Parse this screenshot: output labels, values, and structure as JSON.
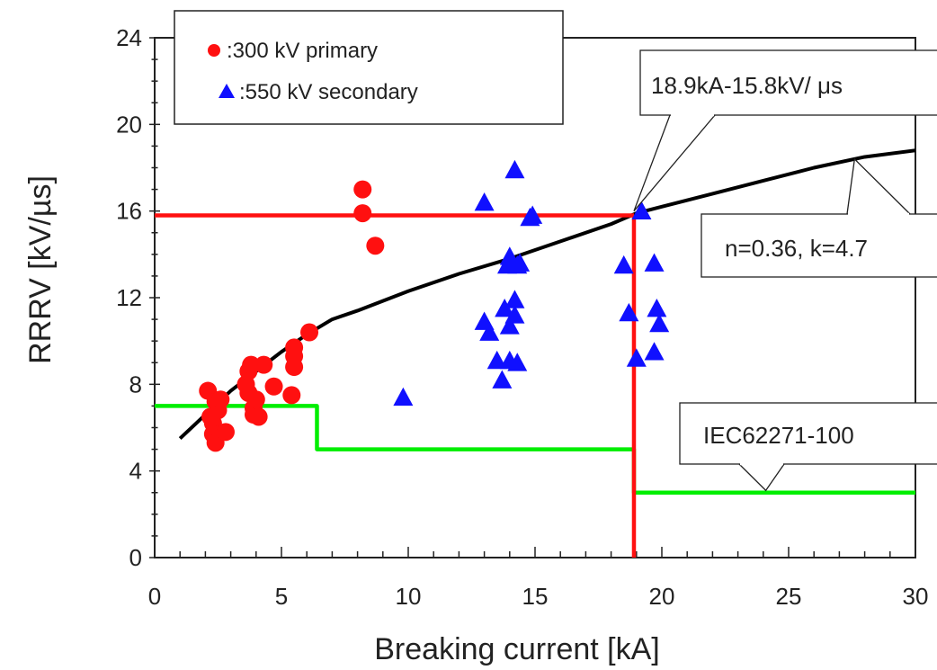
{
  "chart_data": {
    "type": "scatter",
    "title": "",
    "xlabel": "Breaking current [kA]",
    "ylabel": "RRRV [kV/µs]",
    "xlim": [
      0,
      30
    ],
    "ylim": [
      0,
      24
    ],
    "x_ticks": [
      0,
      5,
      10,
      15,
      20,
      25,
      30
    ],
    "y_ticks": [
      0,
      4,
      8,
      12,
      16,
      20,
      24
    ],
    "legend_position": "top-left",
    "series": [
      {
        "name": ":300 kV primary",
        "marker": "circle",
        "color": "#ff1010",
        "points": [
          [
            2.1,
            7.7
          ],
          [
            2.2,
            6.5
          ],
          [
            2.3,
            6.2
          ],
          [
            2.3,
            5.7
          ],
          [
            2.4,
            7.2
          ],
          [
            2.4,
            5.3
          ],
          [
            2.5,
            6.8
          ],
          [
            2.6,
            7.3
          ],
          [
            2.8,
            5.8
          ],
          [
            3.6,
            8.0
          ],
          [
            3.7,
            8.6
          ],
          [
            3.7,
            7.6
          ],
          [
            3.8,
            8.9
          ],
          [
            3.9,
            6.6
          ],
          [
            3.9,
            6.9
          ],
          [
            4.0,
            7.3
          ],
          [
            4.1,
            6.5
          ],
          [
            4.3,
            8.9
          ],
          [
            4.7,
            7.9
          ],
          [
            5.4,
            7.5
          ],
          [
            5.5,
            9.7
          ],
          [
            5.5,
            9.3
          ],
          [
            5.5,
            8.8
          ],
          [
            6.1,
            10.4
          ],
          [
            8.2,
            17.0
          ],
          [
            8.2,
            15.9
          ],
          [
            8.7,
            14.4
          ]
        ]
      },
      {
        "name": ":550 kV secondary",
        "marker": "triangle",
        "color": "#1010ff",
        "points": [
          [
            9.8,
            7.4
          ],
          [
            13.0,
            16.4
          ],
          [
            13.0,
            10.9
          ],
          [
            13.2,
            10.4
          ],
          [
            13.5,
            9.1
          ],
          [
            13.7,
            8.2
          ],
          [
            13.8,
            11.5
          ],
          [
            13.9,
            13.5
          ],
          [
            14.0,
            13.9
          ],
          [
            14.0,
            10.7
          ],
          [
            14.0,
            9.1
          ],
          [
            14.2,
            17.9
          ],
          [
            14.2,
            11.9
          ],
          [
            14.2,
            11.2
          ],
          [
            14.3,
            13.5
          ],
          [
            14.3,
            9.0
          ],
          [
            14.4,
            13.6
          ],
          [
            14.8,
            15.7
          ],
          [
            14.9,
            15.8
          ],
          [
            18.5,
            13.5
          ],
          [
            18.7,
            11.3
          ],
          [
            19.0,
            9.2
          ],
          [
            19.2,
            16.0
          ],
          [
            19.7,
            13.6
          ],
          [
            19.7,
            9.5
          ],
          [
            19.8,
            11.5
          ],
          [
            19.9,
            10.8
          ]
        ]
      }
    ],
    "lines": [
      {
        "id": "fit-curve",
        "color": "#000000",
        "x": [
          1,
          2,
          3,
          4,
          5,
          6,
          7,
          8,
          10,
          12,
          14,
          16,
          18,
          19,
          20,
          22,
          24,
          26,
          28,
          30
        ],
        "y": [
          5.5,
          6.6,
          7.7,
          8.6,
          9.5,
          10.3,
          11.0,
          11.4,
          12.3,
          13.1,
          13.8,
          14.6,
          15.4,
          15.9,
          16.2,
          16.8,
          17.4,
          18.0,
          18.5,
          18.8
        ]
      },
      {
        "id": "iec-limit-line",
        "color": "#00ee00",
        "x": [
          0,
          6.4,
          6.4,
          18.9,
          18.9,
          30
        ],
        "y": [
          7.0,
          7.0,
          5.0,
          5.0,
          3.0,
          3.0
        ]
      },
      {
        "id": "rated-current-line",
        "color": "#ff1010",
        "x": [
          18.9,
          18.9
        ],
        "y": [
          0,
          15.8
        ]
      },
      {
        "id": "rated-rrrv-line",
        "color": "#ff1010",
        "x": [
          0,
          18.9
        ],
        "y": [
          15.8,
          15.8
        ]
      }
    ],
    "annotations": [
      {
        "id": "rated-point",
        "text": "18.9kA-15.8kV/ μs",
        "points_to": [
          18.9,
          16.0
        ]
      },
      {
        "id": "fit-params",
        "text": "n=0.36, k=4.7",
        "points_to": [
          27.6,
          18.4
        ]
      },
      {
        "id": "iec-standard",
        "text": "IEC62271-100",
        "points_to": [
          24.1,
          3.1
        ]
      }
    ]
  }
}
